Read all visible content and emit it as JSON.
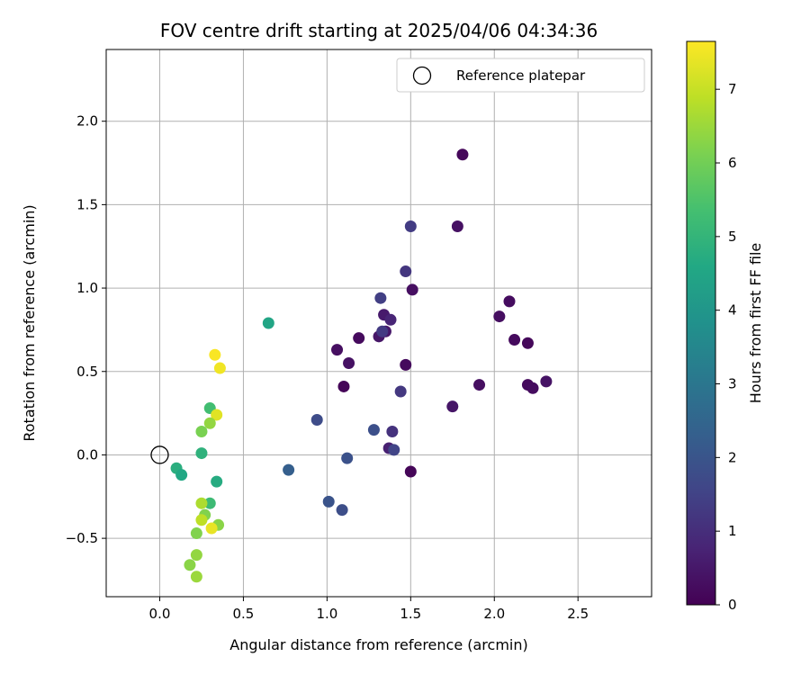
{
  "chart_data": {
    "type": "scatter",
    "title": "FOV centre drift starting at 2025/04/06 04:34:36",
    "xlabel": "Angular distance from reference (arcmin)",
    "ylabel": "Rotation from reference (arcmin)",
    "xlim": [
      -0.32,
      2.94
    ],
    "ylim": [
      -0.85,
      2.43
    ],
    "xticks": [
      "0.0",
      "0.5",
      "1.0",
      "1.5",
      "2.0",
      "2.5"
    ],
    "xtick_values": [
      0,
      0.5,
      1.0,
      1.5,
      2.0,
      2.5
    ],
    "yticks": [
      "−0.5",
      "0.0",
      "0.5",
      "1.0",
      "1.5",
      "2.0"
    ],
    "ytick_values": [
      -0.5,
      0,
      0.5,
      1.0,
      1.5,
      2.0
    ],
    "grid": true,
    "legend": {
      "label": "Reference platepar",
      "placement": "top-right"
    },
    "reference_point": {
      "x": 0.0,
      "y": 0.0
    },
    "colorbar": {
      "label": "Hours from first FF file",
      "range": [
        0,
        7.65
      ],
      "ticks": [
        "0",
        "1",
        "2",
        "3",
        "4",
        "5",
        "6",
        "7"
      ],
      "tick_values": [
        0,
        1,
        2,
        3,
        4,
        5,
        6,
        7
      ],
      "colormap": "viridis"
    },
    "points": [
      {
        "x": 1.81,
        "y": 1.8,
        "h": 0.15
      },
      {
        "x": 1.78,
        "y": 1.37,
        "h": 0.35
      },
      {
        "x": 2.09,
        "y": 0.92,
        "h": 0.25
      },
      {
        "x": 2.03,
        "y": 0.83,
        "h": 0.3
      },
      {
        "x": 2.12,
        "y": 0.69,
        "h": 0.2
      },
      {
        "x": 2.2,
        "y": 0.67,
        "h": 0.15
      },
      {
        "x": 2.31,
        "y": 0.44,
        "h": 0.4
      },
      {
        "x": 2.2,
        "y": 0.42,
        "h": 0.2
      },
      {
        "x": 2.23,
        "y": 0.4,
        "h": 0.25
      },
      {
        "x": 1.91,
        "y": 0.42,
        "h": 0.3
      },
      {
        "x": 1.75,
        "y": 0.29,
        "h": 0.45
      },
      {
        "x": 1.51,
        "y": 0.99,
        "h": 0.3
      },
      {
        "x": 1.47,
        "y": 0.54,
        "h": 0.2
      },
      {
        "x": 1.5,
        "y": -0.1,
        "h": 0.1
      },
      {
        "x": 1.34,
        "y": 0.84,
        "h": 0.55
      },
      {
        "x": 1.38,
        "y": 0.81,
        "h": 0.8
      },
      {
        "x": 1.35,
        "y": 0.74,
        "h": 0.5
      },
      {
        "x": 1.31,
        "y": 0.71,
        "h": 0.45
      },
      {
        "x": 1.37,
        "y": 0.04,
        "h": 0.7
      },
      {
        "x": 1.19,
        "y": 0.7,
        "h": 0.2
      },
      {
        "x": 1.06,
        "y": 0.63,
        "h": 0.3
      },
      {
        "x": 1.13,
        "y": 0.55,
        "h": 0.35
      },
      {
        "x": 1.1,
        "y": 0.41,
        "h": 0.1
      },
      {
        "x": 1.5,
        "y": 1.37,
        "h": 1.35
      },
      {
        "x": 1.47,
        "y": 1.1,
        "h": 1.2
      },
      {
        "x": 1.32,
        "y": 0.94,
        "h": 1.4
      },
      {
        "x": 1.33,
        "y": 0.74,
        "h": 1.3
      },
      {
        "x": 1.44,
        "y": 0.38,
        "h": 1.25
      },
      {
        "x": 1.39,
        "y": 0.14,
        "h": 1.1
      },
      {
        "x": 1.4,
        "y": 0.03,
        "h": 1.55
      },
      {
        "x": 1.28,
        "y": 0.15,
        "h": 1.85
      },
      {
        "x": 0.94,
        "y": 0.21,
        "h": 1.75
      },
      {
        "x": 1.12,
        "y": -0.02,
        "h": 1.9
      },
      {
        "x": 1.01,
        "y": -0.28,
        "h": 1.95
      },
      {
        "x": 1.09,
        "y": -0.33,
        "h": 1.8
      },
      {
        "x": 0.77,
        "y": -0.09,
        "h": 2.3
      },
      {
        "x": 0.65,
        "y": 0.79,
        "h": 4.5
      },
      {
        "x": 0.33,
        "y": 0.6,
        "h": 7.6
      },
      {
        "x": 0.36,
        "y": 0.52,
        "h": 7.5
      },
      {
        "x": 0.3,
        "y": 0.28,
        "h": 5.3
      },
      {
        "x": 0.34,
        "y": 0.24,
        "h": 7.3
      },
      {
        "x": 0.3,
        "y": 0.19,
        "h": 6.4
      },
      {
        "x": 0.25,
        "y": 0.14,
        "h": 6.1
      },
      {
        "x": 0.25,
        "y": 0.01,
        "h": 4.9
      },
      {
        "x": 0.1,
        "y": -0.08,
        "h": 4.8
      },
      {
        "x": 0.13,
        "y": -0.12,
        "h": 4.6
      },
      {
        "x": 0.34,
        "y": -0.16,
        "h": 4.7
      },
      {
        "x": 0.3,
        "y": -0.29,
        "h": 5.2
      },
      {
        "x": 0.25,
        "y": -0.29,
        "h": 6.7
      },
      {
        "x": 0.27,
        "y": -0.36,
        "h": 6.2
      },
      {
        "x": 0.25,
        "y": -0.39,
        "h": 6.9
      },
      {
        "x": 0.35,
        "y": -0.42,
        "h": 6.3
      },
      {
        "x": 0.31,
        "y": -0.44,
        "h": 7.4
      },
      {
        "x": 0.22,
        "y": -0.47,
        "h": 6.2
      },
      {
        "x": 0.22,
        "y": -0.6,
        "h": 6.4
      },
      {
        "x": 0.18,
        "y": -0.66,
        "h": 6.3
      },
      {
        "x": 0.22,
        "y": -0.73,
        "h": 6.5
      }
    ]
  }
}
